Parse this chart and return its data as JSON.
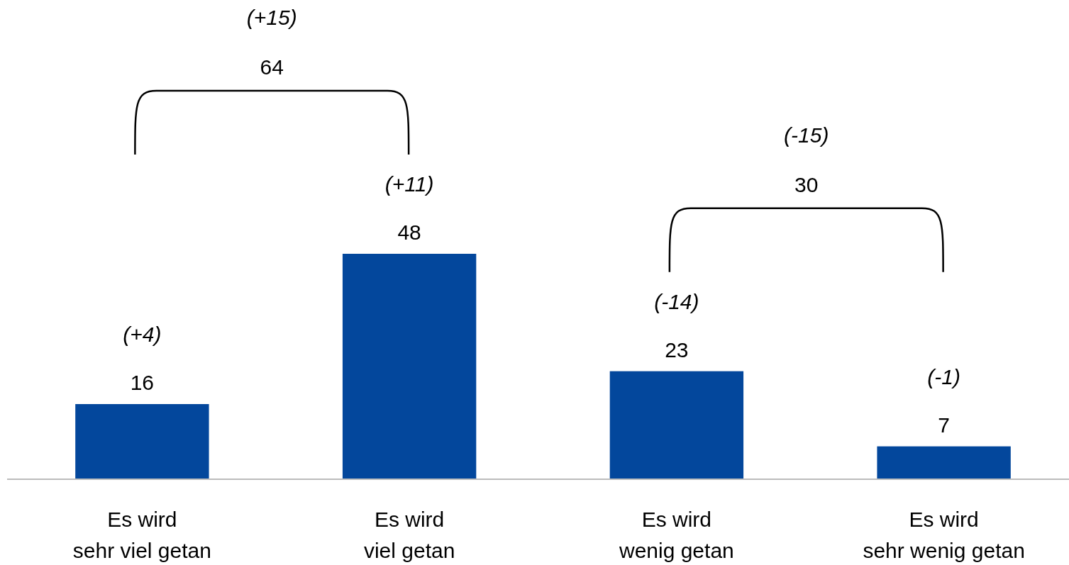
{
  "chart_data": {
    "type": "bar",
    "categories": [
      "Es wird\nsehr viel getan",
      "Es wird\nviel getan",
      "Es wird\nwenig getan",
      "Es wird\nsehr wenig getan"
    ],
    "values": [
      16,
      48,
      23,
      7
    ],
    "color": "#03479c",
    "data_labels": true,
    "annotations": [
      {
        "text": "(+4)",
        "x": "Es wird\nsehr viel getan",
        "y": 16
      },
      {
        "text": "(+11)",
        "x": "Es wird\nviel getan",
        "y": 48
      },
      {
        "text": "(-14)",
        "x": "Es wird\nwenig getan",
        "y": 23
      },
      {
        "text": "(-1)",
        "x": "Es wird\nsehr wenig getan",
        "y": 7
      },
      "64",
      "(+15)",
      "30",
      "(-15)"
    ]
  }
}
